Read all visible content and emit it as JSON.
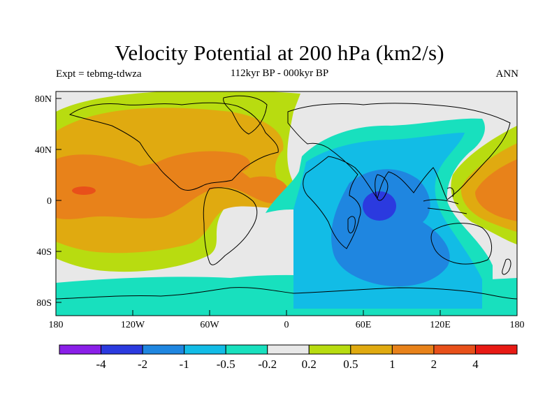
{
  "title": "Velocity Potential at 200 hPa (km2/s)",
  "subtitle_left": "Expt = tebmg-tdwza",
  "subtitle_center": "112kyr BP - 000kyr BP",
  "subtitle_right": "ANN",
  "x_ticks": [
    "180",
    "120W",
    "60W",
    "0",
    "60E",
    "120E",
    "180"
  ],
  "y_ticks": [
    "80N",
    "40N",
    "0",
    "40S",
    "80S"
  ],
  "colorbar": {
    "colors": [
      "#8a1fe8",
      "#2b3adf",
      "#1f86e0",
      "#12bce6",
      "#18e0be",
      "#e8e8e8",
      "#b8dc10",
      "#e0aa10",
      "#e8821a",
      "#e8501a",
      "#e81a14"
    ],
    "labels": [
      "-4",
      "-2",
      "-1",
      "-0.5",
      "-0.2",
      "0.2",
      "0.5",
      "1",
      "2",
      "4"
    ]
  }
}
